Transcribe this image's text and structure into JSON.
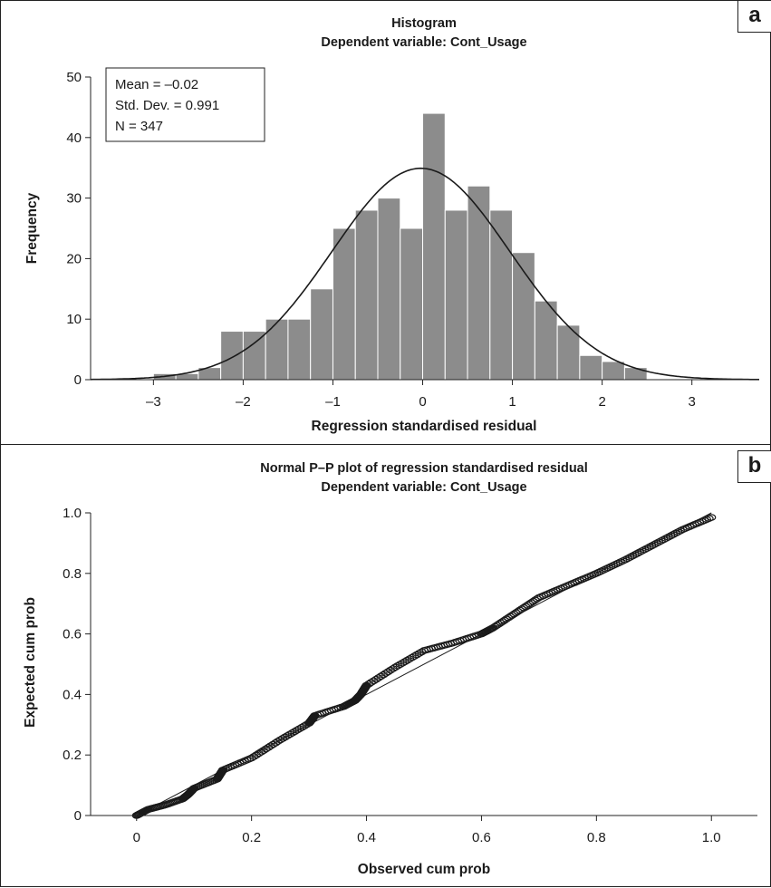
{
  "chart_data": [
    {
      "panel": "a",
      "type": "bar",
      "title": "Histogram",
      "subtitle": "Dependent variable: Cont_Usage",
      "xlabel": "Regression standardised residual",
      "ylabel": "Frequency",
      "xlim": [
        -3.7,
        3.75
      ],
      "ylim": [
        0,
        50
      ],
      "xticks": [
        -3,
        -2,
        -1,
        0,
        1,
        2,
        3
      ],
      "yticks": [
        0,
        10,
        20,
        30,
        40,
        50
      ],
      "bin_width": 0.25,
      "bins_start": [
        -3.0,
        -2.75,
        -2.5,
        -2.25,
        -2.0,
        -1.75,
        -1.5,
        -1.25,
        -1.0,
        -0.75,
        -0.5,
        -0.25,
        0.0,
        0.25,
        0.5,
        0.75,
        1.0,
        1.25,
        1.5,
        1.75,
        2.0,
        2.25
      ],
      "values": [
        1,
        1,
        2,
        8,
        8,
        10,
        10,
        15,
        25,
        28,
        30,
        25,
        44,
        28,
        32,
        28,
        21,
        13,
        9,
        4,
        3,
        2
      ],
      "bar_color": "#8c8c8c",
      "stats": [
        "Mean = –0.02",
        "Std. Dev. = 0.991",
        "N = 347"
      ],
      "normal_curve": {
        "mean": -0.02,
        "sd": 0.991,
        "n": 347
      },
      "grid": false
    },
    {
      "panel": "b",
      "type": "scatter",
      "title": "Normal P–P plot of regression standardised residual",
      "subtitle": "Dependent variable: Cont_Usage",
      "xlabel": "Observed cum prob",
      "ylabel": "Expected cum prob",
      "xlim": [
        -0.08,
        1.08
      ],
      "ylim": [
        0,
        1.0
      ],
      "xticks": [
        "0",
        "0.2",
        "0.4",
        "0.6",
        "0.8",
        "1.0"
      ],
      "yticks": [
        "0",
        "0.2",
        "0.4",
        "0.6",
        "0.8",
        "1.0"
      ],
      "reference_line": [
        [
          0,
          0
        ],
        [
          1,
          1
        ]
      ],
      "points_x": [
        0.0,
        0.02,
        0.05,
        0.08,
        0.09,
        0.1,
        0.14,
        0.15,
        0.2,
        0.25,
        0.3,
        0.31,
        0.36,
        0.38,
        0.39,
        0.4,
        0.45,
        0.5,
        0.55,
        0.6,
        0.62,
        0.66,
        0.7,
        0.75,
        0.8,
        0.85,
        0.9,
        0.95,
        1.0
      ],
      "points_y": [
        0.0,
        0.02,
        0.035,
        0.055,
        0.07,
        0.09,
        0.12,
        0.15,
        0.19,
        0.25,
        0.305,
        0.33,
        0.36,
        0.38,
        0.4,
        0.43,
        0.49,
        0.545,
        0.57,
        0.6,
        0.62,
        0.67,
        0.72,
        0.76,
        0.8,
        0.845,
        0.895,
        0.945,
        0.985
      ],
      "grid": false
    }
  ]
}
